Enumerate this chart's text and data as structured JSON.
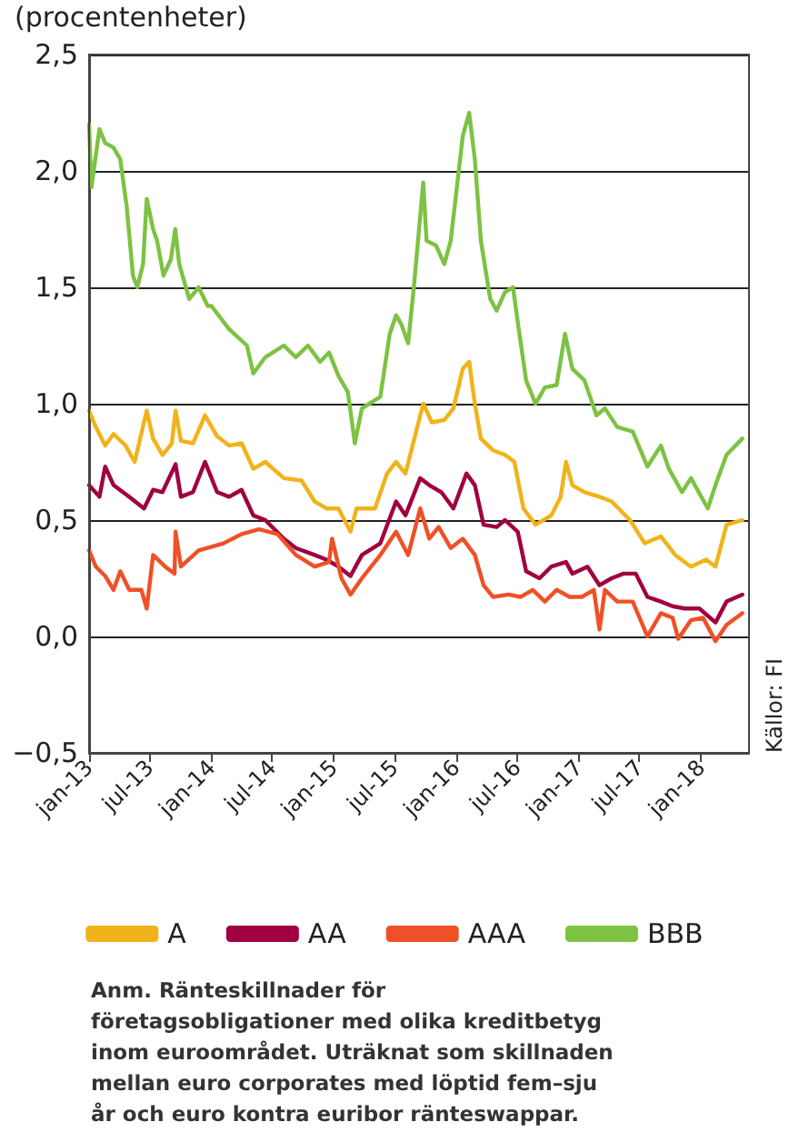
{
  "chart_data": {
    "type": "line",
    "title": "(procentenheter)",
    "xlim": [
      "2013-01-01",
      "2018-05-24"
    ],
    "xticks": [
      {
        "value": "2013-01-01",
        "label": "jan-13"
      },
      {
        "value": "2013-07-01",
        "label": "jul-13"
      },
      {
        "value": "2014-01-01",
        "label": "jan-14"
      },
      {
        "value": "2014-07-01",
        "label": "jul-14"
      },
      {
        "value": "2015-01-01",
        "label": "jan-15"
      },
      {
        "value": "2015-07-01",
        "label": "jul-15"
      },
      {
        "value": "2016-01-01",
        "label": "jan-16"
      },
      {
        "value": "2016-07-01",
        "label": "jul-16"
      },
      {
        "value": "2017-01-01",
        "label": "jan-17"
      },
      {
        "value": "2017-07-01",
        "label": "jul-17"
      },
      {
        "value": "2018-01-01",
        "label": "jan-18"
      }
    ],
    "ylim": [
      -0.5,
      2.5
    ],
    "yticks": [
      {
        "value": -0.5,
        "label": "−0,5"
      },
      {
        "value": 0,
        "label": "0,0"
      },
      {
        "value": 0.5,
        "label": "0,5"
      },
      {
        "value": 1,
        "label": "1,0"
      },
      {
        "value": 1.5,
        "label": "1,5"
      },
      {
        "value": 2,
        "label": "2,0"
      },
      {
        "value": 2.5,
        "label": "2,5"
      }
    ],
    "grid": "y",
    "legend": "bottom",
    "marker": "none",
    "line_style": "solid",
    "annotations": [
      "Källor: FI",
      "Anm. Ränteskillnader för företagsobligationer med olika kreditbetyg inom euroområdet. Uträknat som skillnaden mellan euro corporates med löptid fem–sju år och euro kontra euribor ränteswappar."
    ],
    "series": [
      {
        "name": "A",
        "color": "#f0b31a",
        "x": [
          "2013-01-01",
          "2013-01-21",
          "2013-02-18",
          "2013-03-15",
          "2013-04-20",
          "2013-05-17",
          "2013-06-22",
          "2013-07-11",
          "2013-08-08",
          "2013-09-05",
          "2013-09-16",
          "2013-10-02",
          "2013-11-07",
          "2013-12-13",
          "2014-01-18",
          "2014-02-23",
          "2014-04-01",
          "2014-05-06",
          "2014-06-11",
          "2014-08-05",
          "2014-09-27",
          "2014-11-05",
          "2014-12-10",
          "2015-01-15",
          "2015-02-20",
          "2015-03-10",
          "2015-05-04",
          "2015-06-09",
          "2015-07-06",
          "2015-08-03",
          "2015-09-25",
          "2015-10-21",
          "2015-11-27",
          "2015-12-24",
          "2016-01-21",
          "2016-02-09",
          "2016-02-26",
          "2016-03-15",
          "2016-04-20",
          "2016-05-26",
          "2016-06-23",
          "2016-07-20",
          "2016-08-25",
          "2016-10-11",
          "2016-11-08",
          "2016-11-24",
          "2016-12-13",
          "2017-01-18",
          "2017-03-04",
          "2017-04-09",
          "2017-06-03",
          "2017-07-17",
          "2017-09-03",
          "2017-10-16",
          "2017-12-02",
          "2018-01-16",
          "2018-02-13",
          "2018-03-18",
          "2018-05-04"
        ],
        "values": [
          0.97,
          0.9,
          0.82,
          0.87,
          0.82,
          0.75,
          0.97,
          0.85,
          0.78,
          0.83,
          0.97,
          0.84,
          0.83,
          0.95,
          0.86,
          0.82,
          0.83,
          0.72,
          0.75,
          0.68,
          0.67,
          0.58,
          0.55,
          0.55,
          0.45,
          0.55,
          0.55,
          0.7,
          0.75,
          0.7,
          1.0,
          0.92,
          0.93,
          0.98,
          1.15,
          1.18,
          1.0,
          0.85,
          0.8,
          0.78,
          0.75,
          0.55,
          0.48,
          0.52,
          0.6,
          0.75,
          0.65,
          0.62,
          0.6,
          0.58,
          0.5,
          0.4,
          0.43,
          0.35,
          0.3,
          0.33,
          0.3,
          0.48,
          0.5
        ]
      },
      {
        "name": "AA",
        "color": "#a0003f",
        "x": [
          "2013-01-01",
          "2013-02-01",
          "2013-02-18",
          "2013-03-15",
          "2013-05-01",
          "2013-06-14",
          "2013-07-11",
          "2013-08-08",
          "2013-09-16",
          "2013-10-02",
          "2013-11-07",
          "2013-12-13",
          "2014-01-18",
          "2014-02-23",
          "2014-04-01",
          "2014-05-06",
          "2014-06-11",
          "2014-08-05",
          "2014-09-10",
          "2014-11-05",
          "2014-12-10",
          "2015-01-15",
          "2015-02-20",
          "2015-03-26",
          "2015-05-20",
          "2015-07-06",
          "2015-08-03",
          "2015-09-16",
          "2015-10-13",
          "2015-11-18",
          "2015-12-24",
          "2016-02-01",
          "2016-02-26",
          "2016-03-23",
          "2016-05-01",
          "2016-05-26",
          "2016-07-03",
          "2016-07-28",
          "2016-09-06",
          "2016-10-11",
          "2016-11-24",
          "2016-12-13",
          "2017-01-27",
          "2017-03-04",
          "2017-04-09",
          "2017-05-15",
          "2017-06-20",
          "2017-07-25",
          "2017-09-03",
          "2017-10-08",
          "2017-11-13",
          "2017-12-27",
          "2018-02-13",
          "2018-03-18",
          "2018-05-04"
        ],
        "values": [
          0.65,
          0.6,
          0.73,
          0.65,
          0.6,
          0.55,
          0.63,
          0.62,
          0.74,
          0.6,
          0.62,
          0.75,
          0.62,
          0.6,
          0.63,
          0.52,
          0.5,
          0.42,
          0.38,
          0.35,
          0.33,
          0.3,
          0.26,
          0.35,
          0.4,
          0.58,
          0.52,
          0.68,
          0.65,
          0.62,
          0.55,
          0.7,
          0.65,
          0.48,
          0.47,
          0.5,
          0.45,
          0.28,
          0.25,
          0.3,
          0.32,
          0.27,
          0.3,
          0.22,
          0.25,
          0.27,
          0.27,
          0.17,
          0.15,
          0.13,
          0.12,
          0.12,
          0.06,
          0.15,
          0.18
        ]
      },
      {
        "name": "AAA",
        "color": "#f05027",
        "x": [
          "2013-01-01",
          "2013-01-21",
          "2013-02-18",
          "2013-03-15",
          "2013-04-04",
          "2013-05-01",
          "2013-06-06",
          "2013-06-22",
          "2013-07-11",
          "2013-08-16",
          "2013-09-13",
          "2013-09-16",
          "2013-10-02",
          "2013-11-24",
          "2014-02-06",
          "2014-04-01",
          "2014-05-23",
          "2014-07-17",
          "2014-09-10",
          "2014-11-05",
          "2014-12-18",
          "2014-12-27",
          "2015-01-24",
          "2015-02-20",
          "2015-03-26",
          "2015-05-20",
          "2015-07-06",
          "2015-08-11",
          "2015-09-16",
          "2015-10-13",
          "2015-11-10",
          "2015-12-16",
          "2016-01-21",
          "2016-02-26",
          "2016-03-23",
          "2016-04-20",
          "2016-06-06",
          "2016-07-11",
          "2016-08-17",
          "2016-09-22",
          "2016-10-27",
          "2016-12-05",
          "2017-01-10",
          "2017-02-15",
          "2017-03-04",
          "2017-03-20",
          "2017-04-26",
          "2017-06-11",
          "2017-07-25",
          "2017-09-03",
          "2017-10-08",
          "2017-10-25",
          "2017-12-02",
          "2018-01-07",
          "2018-02-13",
          "2018-03-18",
          "2018-05-04"
        ],
        "values": [
          0.37,
          0.3,
          0.26,
          0.2,
          0.28,
          0.2,
          0.2,
          0.12,
          0.35,
          0.3,
          0.27,
          0.45,
          0.3,
          0.37,
          0.4,
          0.44,
          0.46,
          0.44,
          0.35,
          0.3,
          0.32,
          0.42,
          0.25,
          0.18,
          0.25,
          0.35,
          0.45,
          0.35,
          0.55,
          0.42,
          0.47,
          0.38,
          0.42,
          0.35,
          0.22,
          0.17,
          0.18,
          0.17,
          0.2,
          0.15,
          0.2,
          0.17,
          0.17,
          0.2,
          0.03,
          0.2,
          0.15,
          0.15,
          0.0,
          0.1,
          0.08,
          -0.01,
          0.07,
          0.08,
          -0.02,
          0.05,
          0.1
        ]
      },
      {
        "name": "BBB",
        "color": "#7dc242",
        "x": [
          "2013-01-01",
          "2013-01-08",
          "2013-02-01",
          "2013-02-18",
          "2013-03-15",
          "2013-04-04",
          "2013-04-23",
          "2013-05-12",
          "2013-05-25",
          "2013-06-11",
          "2013-06-22",
          "2013-07-11",
          "2013-07-23",
          "2013-08-11",
          "2013-09-02",
          "2013-09-15",
          "2013-09-27",
          "2013-10-27",
          "2013-11-24",
          "2013-12-21",
          "2014-01-01",
          "2014-02-23",
          "2014-04-17",
          "2014-05-06",
          "2014-06-11",
          "2014-08-05",
          "2014-09-10",
          "2014-10-16",
          "2014-11-21",
          "2014-12-18",
          "2015-01-15",
          "2015-02-12",
          "2015-03-05",
          "2015-03-26",
          "2015-05-20",
          "2015-06-17",
          "2015-07-06",
          "2015-07-22",
          "2015-08-11",
          "2015-08-28",
          "2015-09-25",
          "2015-10-05",
          "2015-11-02",
          "2015-11-27",
          "2015-12-16",
          "2016-01-05",
          "2016-01-21",
          "2016-02-09",
          "2016-02-26",
          "2016-03-15",
          "2016-04-12",
          "2016-05-01",
          "2016-05-26",
          "2016-06-19",
          "2016-07-03",
          "2016-07-28",
          "2016-08-25",
          "2016-09-22",
          "2016-10-27",
          "2016-11-21",
          "2016-12-13",
          "2017-01-18",
          "2017-02-23",
          "2017-03-20",
          "2017-04-26",
          "2017-06-11",
          "2017-07-25",
          "2017-09-03",
          "2017-09-27",
          "2017-11-05",
          "2017-12-02",
          "2018-01-21",
          "2018-02-13",
          "2018-03-18",
          "2018-05-04"
        ],
        "values": [
          2.2,
          1.93,
          2.18,
          2.12,
          2.1,
          2.05,
          1.85,
          1.55,
          1.5,
          1.6,
          1.88,
          1.75,
          1.7,
          1.55,
          1.62,
          1.75,
          1.6,
          1.45,
          1.5,
          1.42,
          1.42,
          1.32,
          1.25,
          1.13,
          1.2,
          1.25,
          1.2,
          1.25,
          1.18,
          1.22,
          1.12,
          1.05,
          0.83,
          0.98,
          1.03,
          1.3,
          1.38,
          1.34,
          1.26,
          1.5,
          1.95,
          1.7,
          1.68,
          1.6,
          1.7,
          1.95,
          2.15,
          2.25,
          2.05,
          1.7,
          1.45,
          1.4,
          1.48,
          1.5,
          1.35,
          1.1,
          1.0,
          1.07,
          1.08,
          1.3,
          1.15,
          1.1,
          0.95,
          0.98,
          0.9,
          0.88,
          0.73,
          0.82,
          0.72,
          0.62,
          0.68,
          0.55,
          0.65,
          0.78,
          0.85
        ]
      }
    ]
  }
}
